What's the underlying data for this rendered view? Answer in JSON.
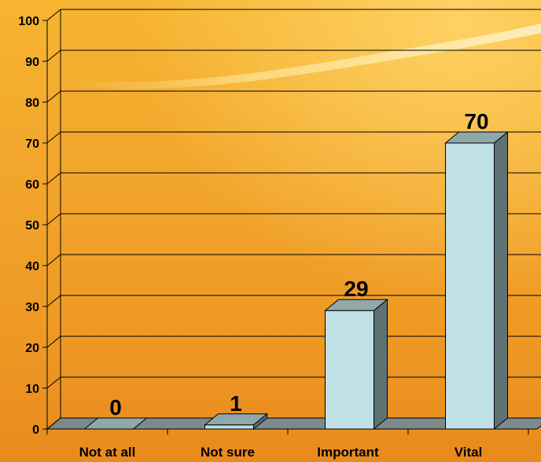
{
  "chart_data": {
    "type": "bar",
    "categories": [
      "Not at all",
      "Not sure",
      "Important",
      "Vital"
    ],
    "values": [
      0,
      1,
      29,
      70
    ],
    "data_labels": [
      "0",
      "1",
      "29",
      "70"
    ],
    "ylim": [
      0,
      100
    ],
    "yticks": [
      0,
      10,
      20,
      30,
      40,
      50,
      60,
      70,
      80,
      90,
      100
    ],
    "title": "",
    "xlabel": "",
    "ylabel": "",
    "grid": true,
    "legend": "none",
    "style": "3d-column",
    "colors": {
      "bar_front": "#BFE0E4",
      "bar_side": "#5E7274",
      "bar_top": "#8FA9AA",
      "floor": "#7D8A8B",
      "background": "#F0A22A"
    }
  }
}
